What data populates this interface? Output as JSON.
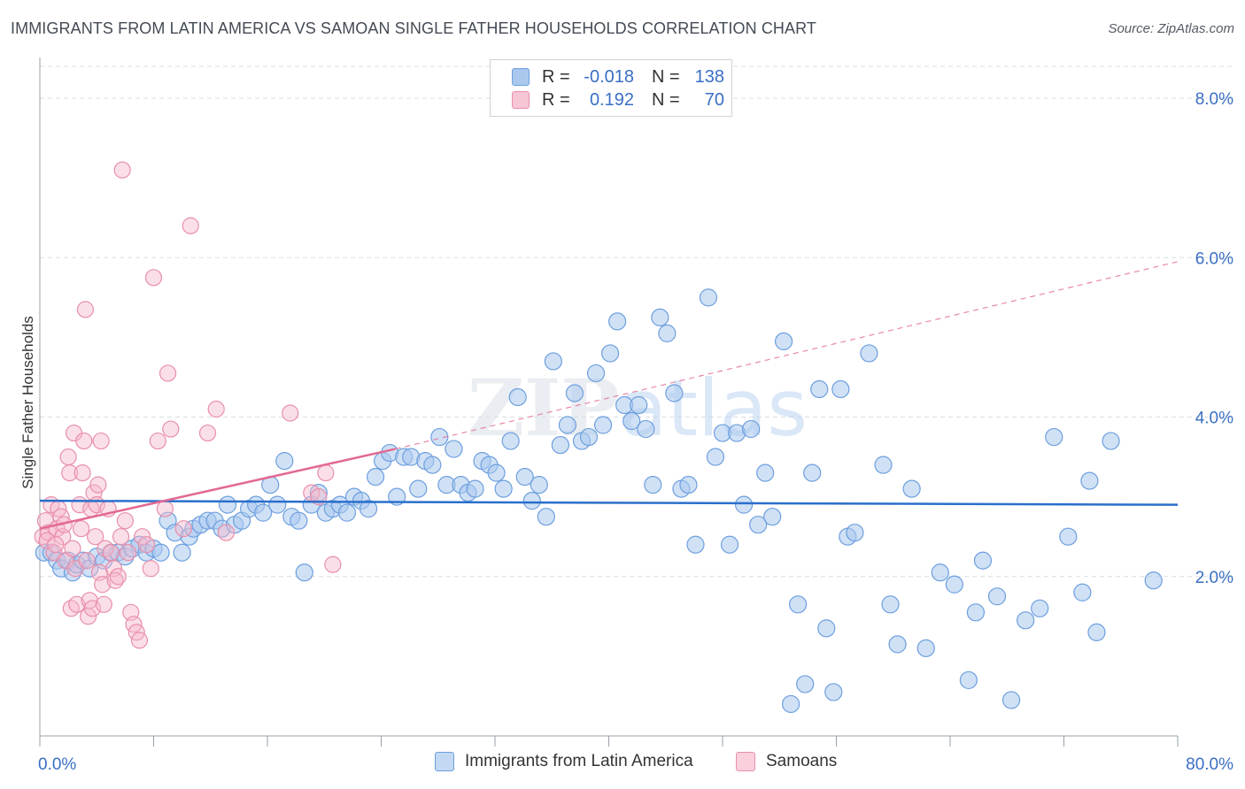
{
  "title": "IMMIGRANTS FROM LATIN AMERICA VS SAMOAN SINGLE FATHER HOUSEHOLDS CORRELATION CHART",
  "source": "Source: ZipAtlas.com",
  "watermark": "ZIPatlas",
  "legend": {
    "rows": [
      {
        "r_label": "R =",
        "r_value": "-0.018",
        "n_label": "N =",
        "n_value": "138"
      },
      {
        "r_label": "R =",
        "r_value": "0.192",
        "n_label": "N =",
        "n_value": "70"
      }
    ]
  },
  "bottom_legend": {
    "series_a": "Immigrants from Latin America",
    "series_b": "Samoans"
  },
  "colors": {
    "blue_fill": "#aac8ee",
    "blue_stroke": "#6d9fde",
    "blue_line": "#2a6fcb",
    "pink_fill": "#f6b9cc",
    "pink_stroke": "#e88fab",
    "pink_line": "#e26a93",
    "grid": "#d9dde3",
    "tick_label": "#3a6fc4"
  },
  "chart_data": {
    "type": "scatter",
    "ylabel": "Single Father Households",
    "xlabel": "",
    "xlim": [
      0,
      80
    ],
    "ylim": [
      0,
      8.4
    ],
    "x_tick_labels": [
      "0.0%",
      "80.0%"
    ],
    "y_ticks": [
      2,
      4,
      6,
      8
    ],
    "y_tick_labels": [
      "2.0%",
      "4.0%",
      "6.0%",
      "8.0%"
    ],
    "grid": true,
    "legend_placement": "top-center",
    "series": [
      {
        "name": "Immigrants from Latin America",
        "color": "#aac8ee",
        "trend": {
          "x": [
            0,
            80
          ],
          "y": [
            2.95,
            2.9
          ],
          "dashed": false
        },
        "points": [
          [
            0.3,
            2.3
          ],
          [
            0.8,
            2.3
          ],
          [
            1.2,
            2.2
          ],
          [
            1.5,
            2.1
          ],
          [
            2.0,
            2.2
          ],
          [
            2.3,
            2.05
          ],
          [
            2.6,
            2.15
          ],
          [
            3.0,
            2.2
          ],
          [
            3.5,
            2.1
          ],
          [
            4.0,
            2.25
          ],
          [
            4.5,
            2.2
          ],
          [
            5.0,
            2.3
          ],
          [
            5.5,
            2.3
          ],
          [
            6.0,
            2.25
          ],
          [
            6.5,
            2.35
          ],
          [
            7.0,
            2.4
          ],
          [
            7.5,
            2.3
          ],
          [
            8.0,
            2.35
          ],
          [
            8.5,
            2.3
          ],
          [
            9.0,
            2.7
          ],
          [
            9.5,
            2.55
          ],
          [
            10.0,
            2.3
          ],
          [
            10.5,
            2.5
          ],
          [
            10.8,
            2.6
          ],
          [
            11.3,
            2.65
          ],
          [
            11.8,
            2.7
          ],
          [
            12.3,
            2.7
          ],
          [
            12.8,
            2.6
          ],
          [
            13.2,
            2.9
          ],
          [
            13.7,
            2.65
          ],
          [
            14.2,
            2.7
          ],
          [
            14.7,
            2.85
          ],
          [
            15.2,
            2.9
          ],
          [
            15.7,
            2.8
          ],
          [
            16.2,
            3.15
          ],
          [
            16.7,
            2.9
          ],
          [
            17.2,
            3.45
          ],
          [
            17.7,
            2.75
          ],
          [
            18.2,
            2.7
          ],
          [
            18.6,
            2.05
          ],
          [
            19.1,
            2.9
          ],
          [
            19.6,
            3.05
          ],
          [
            20.1,
            2.8
          ],
          [
            20.6,
            2.85
          ],
          [
            21.1,
            2.9
          ],
          [
            21.6,
            2.8
          ],
          [
            22.1,
            3.0
          ],
          [
            22.6,
            2.95
          ],
          [
            23.1,
            2.85
          ],
          [
            23.6,
            3.25
          ],
          [
            24.1,
            3.45
          ],
          [
            24.6,
            3.55
          ],
          [
            25.1,
            3.0
          ],
          [
            25.6,
            3.5
          ],
          [
            26.1,
            3.5
          ],
          [
            26.6,
            3.1
          ],
          [
            27.1,
            3.45
          ],
          [
            27.6,
            3.4
          ],
          [
            28.1,
            3.75
          ],
          [
            28.6,
            3.15
          ],
          [
            29.1,
            3.6
          ],
          [
            29.6,
            3.15
          ],
          [
            30.1,
            3.05
          ],
          [
            30.6,
            3.1
          ],
          [
            31.1,
            3.45
          ],
          [
            31.6,
            3.4
          ],
          [
            32.1,
            3.3
          ],
          [
            32.6,
            3.1
          ],
          [
            33.1,
            3.7
          ],
          [
            33.6,
            4.25
          ],
          [
            34.1,
            3.25
          ],
          [
            34.6,
            2.95
          ],
          [
            35.1,
            3.15
          ],
          [
            35.6,
            2.75
          ],
          [
            36.1,
            4.7
          ],
          [
            36.6,
            3.65
          ],
          [
            37.1,
            3.9
          ],
          [
            37.6,
            4.3
          ],
          [
            38.1,
            3.7
          ],
          [
            38.6,
            3.75
          ],
          [
            39.1,
            4.55
          ],
          [
            39.6,
            3.9
          ],
          [
            40.1,
            4.8
          ],
          [
            40.6,
            5.2
          ],
          [
            41.1,
            4.15
          ],
          [
            41.6,
            3.95
          ],
          [
            42.1,
            4.15
          ],
          [
            42.6,
            3.85
          ],
          [
            43.1,
            3.15
          ],
          [
            43.6,
            5.25
          ],
          [
            44.1,
            5.05
          ],
          [
            44.6,
            4.3
          ],
          [
            45.1,
            3.1
          ],
          [
            45.6,
            3.15
          ],
          [
            46.1,
            2.4
          ],
          [
            47.0,
            5.5
          ],
          [
            47.5,
            3.5
          ],
          [
            48.0,
            3.8
          ],
          [
            48.5,
            2.4
          ],
          [
            49.0,
            3.8
          ],
          [
            49.5,
            2.9
          ],
          [
            50.0,
            3.85
          ],
          [
            50.5,
            2.65
          ],
          [
            51.0,
            3.3
          ],
          [
            51.5,
            2.75
          ],
          [
            52.3,
            4.95
          ],
          [
            52.8,
            0.4
          ],
          [
            53.3,
            1.65
          ],
          [
            53.8,
            0.65
          ],
          [
            54.3,
            3.3
          ],
          [
            54.8,
            4.35
          ],
          [
            55.3,
            1.35
          ],
          [
            55.8,
            0.55
          ],
          [
            56.3,
            4.35
          ],
          [
            56.8,
            2.5
          ],
          [
            57.3,
            2.55
          ],
          [
            58.3,
            4.8
          ],
          [
            59.3,
            3.4
          ],
          [
            59.8,
            1.65
          ],
          [
            60.3,
            1.15
          ],
          [
            61.3,
            3.1
          ],
          [
            62.3,
            1.1
          ],
          [
            63.3,
            2.05
          ],
          [
            64.3,
            1.9
          ],
          [
            65.3,
            0.7
          ],
          [
            65.8,
            1.55
          ],
          [
            66.3,
            2.2
          ],
          [
            67.3,
            1.75
          ],
          [
            68.3,
            0.45
          ],
          [
            69.3,
            1.45
          ],
          [
            70.3,
            1.6
          ],
          [
            71.3,
            3.75
          ],
          [
            72.3,
            2.5
          ],
          [
            73.3,
            1.8
          ],
          [
            74.3,
            1.3
          ],
          [
            75.3,
            3.7
          ],
          [
            78.3,
            1.95
          ],
          [
            73.8,
            3.2
          ]
        ]
      },
      {
        "name": "Samoans",
        "color": "#f6b9cc",
        "trend": {
          "x": [
            0,
            25
          ],
          "y": [
            2.6,
            3.6
          ],
          "dashed": false,
          "extension": {
            "x": [
              25,
              80
            ],
            "y": [
              3.6,
              5.95
            ],
            "dashed": true
          }
        },
        "points": [
          [
            0.2,
            2.5
          ],
          [
            0.4,
            2.7
          ],
          [
            0.6,
            2.55
          ],
          [
            0.8,
            2.9
          ],
          [
            1.0,
            2.3
          ],
          [
            1.2,
            2.6
          ],
          [
            1.3,
            2.85
          ],
          [
            1.5,
            2.75
          ],
          [
            1.6,
            2.5
          ],
          [
            1.8,
            2.2
          ],
          [
            2.0,
            3.5
          ],
          [
            2.1,
            3.3
          ],
          [
            2.2,
            1.6
          ],
          [
            2.4,
            3.8
          ],
          [
            2.5,
            2.1
          ],
          [
            2.6,
            1.65
          ],
          [
            2.8,
            2.9
          ],
          [
            3.0,
            3.3
          ],
          [
            3.1,
            3.7
          ],
          [
            3.2,
            5.35
          ],
          [
            3.3,
            2.2
          ],
          [
            3.4,
            1.5
          ],
          [
            3.5,
            1.7
          ],
          [
            3.6,
            2.85
          ],
          [
            3.7,
            1.6
          ],
          [
            3.8,
            3.05
          ],
          [
            3.9,
            2.5
          ],
          [
            4.0,
            2.9
          ],
          [
            4.1,
            3.15
          ],
          [
            4.2,
            2.05
          ],
          [
            4.3,
            3.7
          ],
          [
            4.4,
            1.9
          ],
          [
            4.5,
            1.65
          ],
          [
            4.6,
            2.35
          ],
          [
            4.8,
            2.85
          ],
          [
            5.0,
            2.3
          ],
          [
            5.2,
            2.1
          ],
          [
            5.3,
            1.95
          ],
          [
            5.5,
            2.0
          ],
          [
            5.7,
            2.5
          ],
          [
            5.8,
            7.1
          ],
          [
            6.0,
            2.7
          ],
          [
            6.2,
            2.3
          ],
          [
            6.4,
            1.55
          ],
          [
            6.6,
            1.4
          ],
          [
            6.8,
            1.3
          ],
          [
            7.0,
            1.2
          ],
          [
            7.2,
            2.5
          ],
          [
            7.5,
            2.4
          ],
          [
            7.8,
            2.1
          ],
          [
            8.0,
            5.75
          ],
          [
            8.3,
            3.7
          ],
          [
            9.0,
            4.55
          ],
          [
            9.2,
            3.85
          ],
          [
            10.1,
            2.6
          ],
          [
            10.6,
            6.4
          ],
          [
            11.8,
            3.8
          ],
          [
            12.4,
            4.1
          ],
          [
            13.1,
            2.55
          ],
          [
            17.6,
            4.05
          ],
          [
            19.1,
            3.05
          ],
          [
            19.6,
            3.0
          ],
          [
            20.1,
            3.3
          ],
          [
            20.6,
            2.15
          ],
          [
            0.5,
            2.45
          ],
          [
            1.1,
            2.4
          ],
          [
            1.7,
            2.65
          ],
          [
            2.3,
            2.35
          ],
          [
            2.9,
            2.6
          ],
          [
            8.8,
            2.85
          ]
        ]
      }
    ]
  }
}
